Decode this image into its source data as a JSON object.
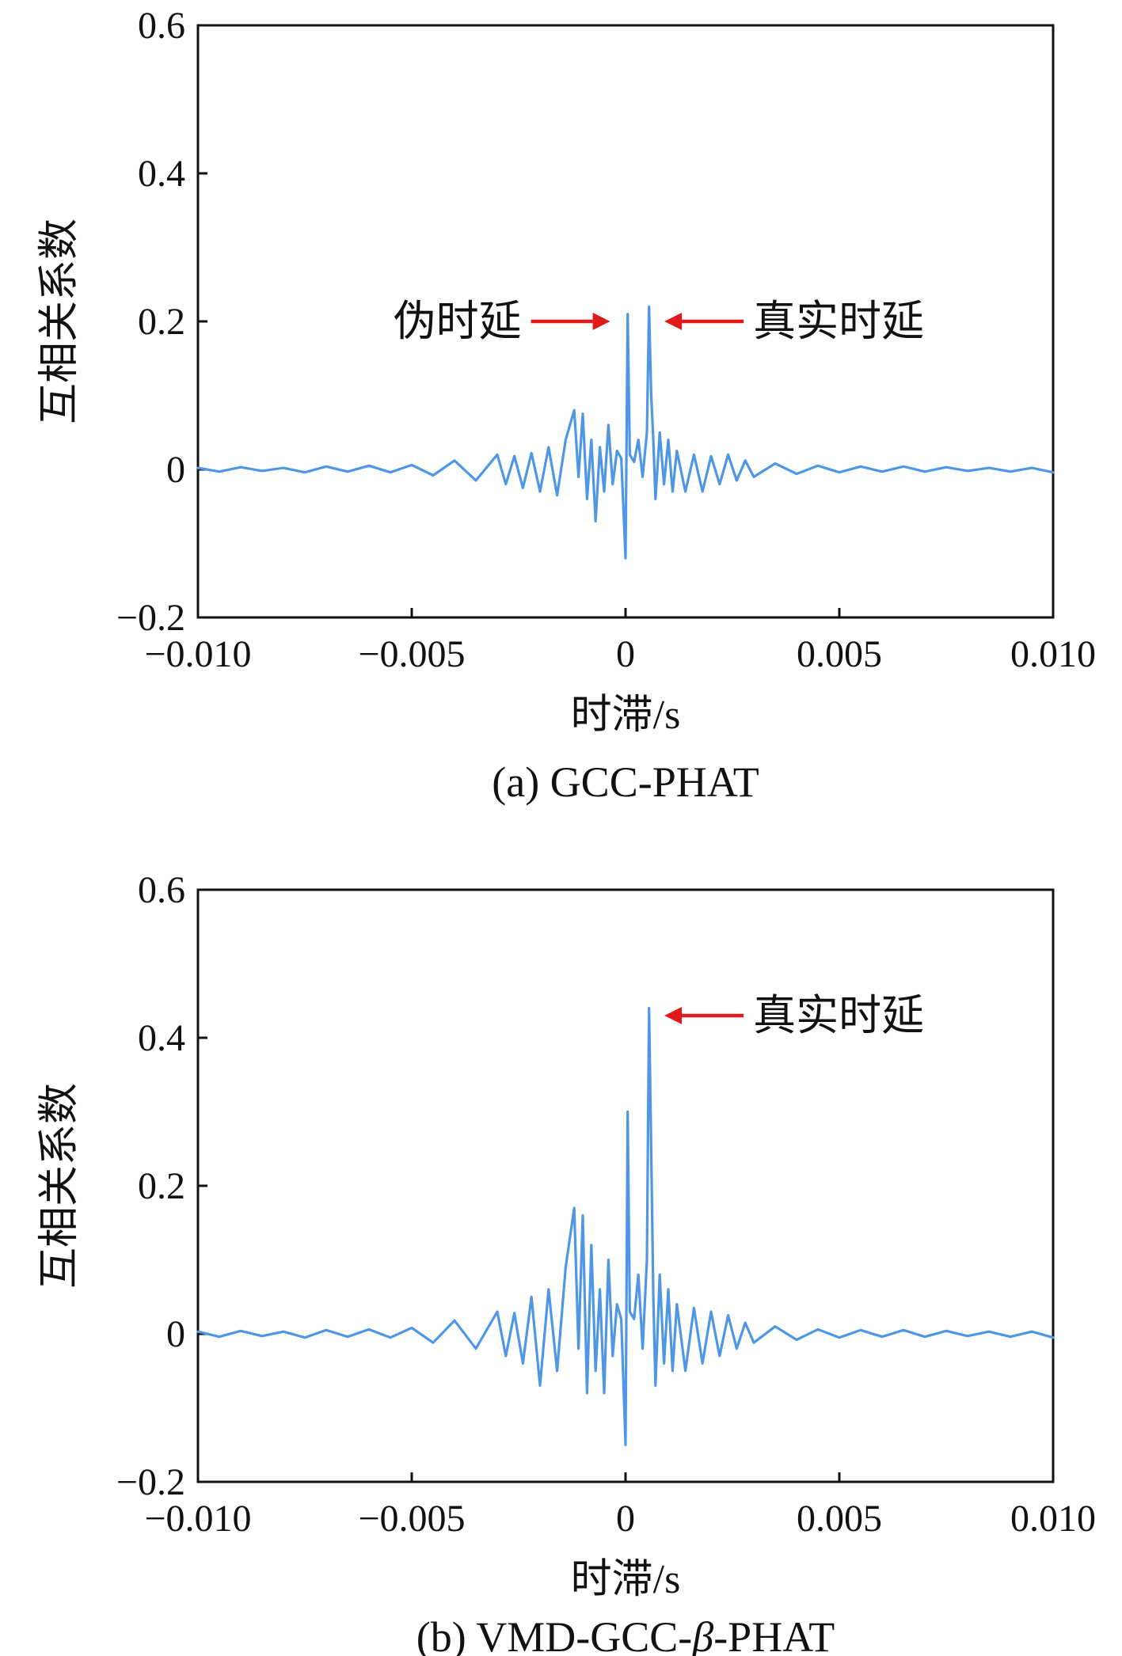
{
  "colors": {
    "series": "#4f97e6",
    "arrow": "#e0191b",
    "axis": "#111111"
  },
  "chart_data": [
    {
      "type": "line",
      "caption": "(a) GCC-PHAT",
      "xlabel": "时滞/s",
      "ylabel": "互相关系数",
      "xlim": [
        -0.01,
        0.01
      ],
      "ylim": [
        -0.2,
        0.6
      ],
      "x_ticks": [
        -0.01,
        -0.005,
        0,
        0.005,
        0.01
      ],
      "x_tick_labels": [
        "−0.010",
        "−0.005",
        "0",
        "0.005",
        "0.010"
      ],
      "y_ticks": [
        -0.2,
        0,
        0.2,
        0.4,
        0.6
      ],
      "y_tick_labels": [
        "−0.2",
        "0",
        "0.2",
        "0.4",
        "0.6"
      ],
      "series": [
        {
          "name": "GCC-PHAT",
          "x": [
            -0.01,
            -0.0095,
            -0.009,
            -0.0085,
            -0.008,
            -0.0075,
            -0.007,
            -0.0065,
            -0.006,
            -0.0055,
            -0.005,
            -0.0045,
            -0.004,
            -0.0035,
            -0.003,
            -0.0028,
            -0.0026,
            -0.0024,
            -0.0022,
            -0.002,
            -0.0018,
            -0.0016,
            -0.0014,
            -0.0012,
            -0.0011,
            -0.001,
            -0.0009,
            -0.0008,
            -0.0007,
            -0.0006,
            -0.0005,
            -0.0004,
            -0.0003,
            -0.0002,
            -0.0001,
            0,
            5e-05,
            0.0001,
            0.0002,
            0.0003,
            0.0004,
            0.0005,
            0.00055,
            0.0006,
            0.00065,
            0.0007,
            0.0008,
            0.0009,
            0.001,
            0.0011,
            0.0012,
            0.0014,
            0.0016,
            0.0018,
            0.002,
            0.0022,
            0.0024,
            0.0026,
            0.0028,
            0.003,
            0.0035,
            0.004,
            0.0045,
            0.005,
            0.0055,
            0.006,
            0.0065,
            0.007,
            0.0075,
            0.008,
            0.0085,
            0.009,
            0.0095,
            0.01
          ],
          "y": [
            0.002,
            -0.003,
            0.003,
            -0.002,
            0.002,
            -0.004,
            0.004,
            -0.003,
            0.005,
            -0.004,
            0.006,
            -0.008,
            0.012,
            -0.015,
            0.02,
            -0.02,
            0.018,
            -0.025,
            0.022,
            -0.03,
            0.03,
            -0.035,
            0.04,
            0.08,
            -0.01,
            0.075,
            -0.04,
            0.04,
            -0.07,
            0.03,
            -0.03,
            0.06,
            -0.02,
            0.025,
            0.015,
            -0.12,
            0.21,
            0.02,
            0.01,
            0.04,
            -0.01,
            0.05,
            0.22,
            0.1,
            0.04,
            -0.04,
            0.05,
            -0.02,
            0.04,
            -0.03,
            0.025,
            -0.03,
            0.02,
            -0.03,
            0.018,
            -0.02,
            0.02,
            -0.015,
            0.012,
            -0.01,
            0.008,
            -0.006,
            0.005,
            -0.004,
            0.004,
            -0.003,
            0.004,
            -0.003,
            0.003,
            -0.002,
            0.002,
            -0.003,
            0.002,
            -0.004
          ]
        }
      ],
      "annotations": [
        {
          "label": "伪时延",
          "x": -0.0001,
          "y": 0.2,
          "side": "left"
        },
        {
          "label": "真实时延",
          "x": 0.00065,
          "y": 0.2,
          "side": "right"
        }
      ]
    },
    {
      "type": "line",
      "caption_prefix": "(b) VMD-GCC-",
      "caption_beta": "β",
      "caption_suffix": "-PHAT",
      "xlabel": "时滞/s",
      "ylabel": "互相关系数",
      "xlim": [
        -0.01,
        0.01
      ],
      "ylim": [
        -0.2,
        0.6
      ],
      "x_ticks": [
        -0.01,
        -0.005,
        0,
        0.005,
        0.01
      ],
      "x_tick_labels": [
        "−0.010",
        "−0.005",
        "0",
        "0.005",
        "0.010"
      ],
      "y_ticks": [
        -0.2,
        0,
        0.2,
        0.4,
        0.6
      ],
      "y_tick_labels": [
        "−0.2",
        "0",
        "0.2",
        "0.4",
        "0.6"
      ],
      "series": [
        {
          "name": "VMD-GCC-β-PHAT",
          "x": [
            -0.01,
            -0.0095,
            -0.009,
            -0.0085,
            -0.008,
            -0.0075,
            -0.007,
            -0.0065,
            -0.006,
            -0.0055,
            -0.005,
            -0.0045,
            -0.004,
            -0.0035,
            -0.003,
            -0.0028,
            -0.0026,
            -0.0024,
            -0.0022,
            -0.002,
            -0.0018,
            -0.0016,
            -0.0014,
            -0.0012,
            -0.0011,
            -0.001,
            -0.0009,
            -0.0008,
            -0.0007,
            -0.0006,
            -0.0005,
            -0.0004,
            -0.0003,
            -0.0002,
            -0.0001,
            0,
            5e-05,
            0.0001,
            0.0002,
            0.0003,
            0.0004,
            0.0005,
            0.00055,
            0.0006,
            0.00065,
            0.0007,
            0.0008,
            0.0009,
            0.001,
            0.0011,
            0.0012,
            0.0014,
            0.0016,
            0.0018,
            0.002,
            0.0022,
            0.0024,
            0.0026,
            0.0028,
            0.003,
            0.0035,
            0.004,
            0.0045,
            0.005,
            0.0055,
            0.006,
            0.0065,
            0.007,
            0.0075,
            0.008,
            0.0085,
            0.009,
            0.0095,
            0.01
          ],
          "y": [
            0.003,
            -0.004,
            0.004,
            -0.003,
            0.003,
            -0.005,
            0.005,
            -0.004,
            0.006,
            -0.005,
            0.008,
            -0.012,
            0.018,
            -0.02,
            0.03,
            -0.03,
            0.028,
            -0.04,
            0.05,
            -0.07,
            0.06,
            -0.05,
            0.09,
            0.17,
            -0.02,
            0.16,
            -0.08,
            0.12,
            -0.05,
            0.06,
            -0.08,
            0.1,
            -0.03,
            0.04,
            0.02,
            -0.15,
            0.3,
            0.03,
            0.02,
            0.08,
            -0.02,
            0.1,
            0.44,
            0.25,
            0.05,
            -0.07,
            0.08,
            -0.04,
            0.06,
            -0.05,
            0.04,
            -0.05,
            0.035,
            -0.04,
            0.03,
            -0.03,
            0.025,
            -0.02,
            0.015,
            -0.012,
            0.01,
            -0.008,
            0.006,
            -0.005,
            0.005,
            -0.004,
            0.005,
            -0.004,
            0.004,
            -0.003,
            0.003,
            -0.004,
            0.003,
            -0.005
          ]
        }
      ],
      "annotations": [
        {
          "label": "真实时延",
          "x": 0.00065,
          "y": 0.43,
          "side": "right"
        }
      ]
    }
  ]
}
